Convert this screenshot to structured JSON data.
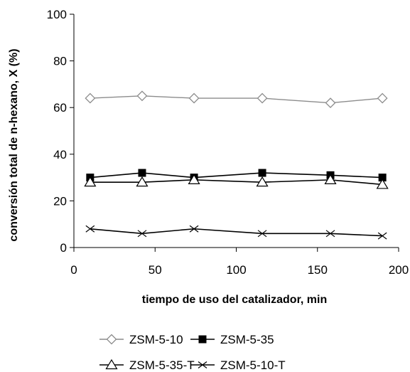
{
  "chart_data": {
    "type": "line",
    "title": "",
    "xlabel": "tiempo de uso del catalizador, min",
    "ylabel": "conversión total de n-hexano, X (%)",
    "xlim": [
      0,
      200
    ],
    "ylim": [
      0,
      100
    ],
    "x_ticks": [
      0,
      50,
      100,
      150,
      200
    ],
    "y_ticks": [
      0,
      20,
      40,
      60,
      80,
      100
    ],
    "grid": false,
    "legend_position": "bottom",
    "x": [
      10,
      42,
      74,
      116,
      158,
      190
    ],
    "series": [
      {
        "name": "ZSM-5-10",
        "values": [
          64,
          65,
          64,
          64,
          62,
          64
        ],
        "color": "#8c8c8c",
        "marker": "diamond-open"
      },
      {
        "name": "ZSM-5-35",
        "values": [
          30,
          32,
          30,
          32,
          31,
          30
        ],
        "color": "#000000",
        "marker": "square-filled"
      },
      {
        "name": "ZSM-5-35-T",
        "values": [
          28,
          28,
          29,
          28,
          29,
          27
        ],
        "color": "#000000",
        "marker": "triangle-open"
      },
      {
        "name": "ZSM-5-10-T",
        "values": [
          8,
          6,
          8,
          6,
          6,
          5
        ],
        "color": "#000000",
        "marker": "x"
      }
    ]
  }
}
